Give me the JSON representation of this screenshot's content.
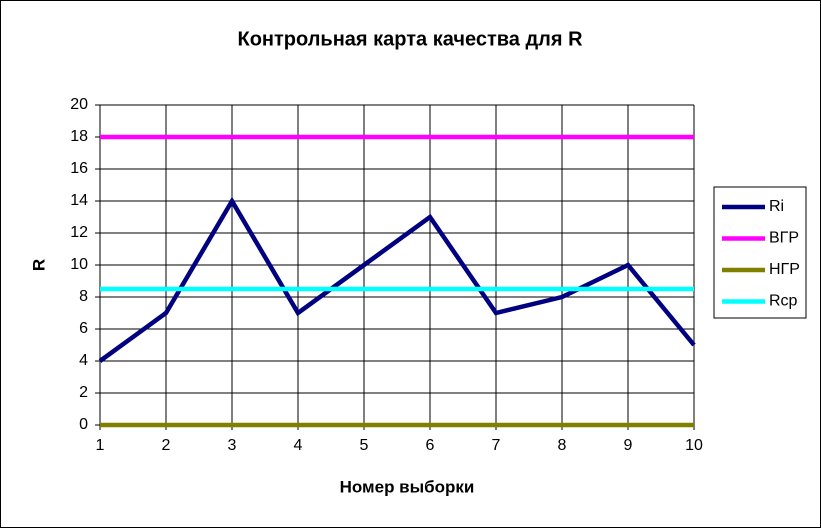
{
  "chart_data": {
    "type": "line",
    "title": "Контрольная карта качества для R",
    "x_label": "Номер выборки",
    "y_label": "R",
    "x": [
      1,
      2,
      3,
      4,
      5,
      6,
      7,
      8,
      9,
      10
    ],
    "series": [
      {
        "name": "Ri",
        "color": "#000080",
        "values": [
          4,
          7,
          14,
          7,
          10,
          13,
          7,
          8,
          10,
          5
        ]
      },
      {
        "name": "ВГР",
        "color": "#ff00ff",
        "values": [
          18,
          18,
          18,
          18,
          18,
          18,
          18,
          18,
          18,
          18
        ]
      },
      {
        "name": "НГР",
        "color": "#808000",
        "values": [
          0,
          0,
          0,
          0,
          0,
          0,
          0,
          0,
          0,
          0
        ]
      },
      {
        "name": "Rcp",
        "color": "#00ffff",
        "values": [
          8.5,
          8.5,
          8.5,
          8.5,
          8.5,
          8.5,
          8.5,
          8.5,
          8.5,
          8.5
        ]
      }
    ],
    "xlim": [
      1,
      10
    ],
    "xticks": [
      1,
      2,
      3,
      4,
      5,
      6,
      7,
      8,
      9,
      10
    ],
    "ylim": [
      0,
      20
    ],
    "yticks": [
      0,
      2,
      4,
      6,
      8,
      10,
      12,
      14,
      16,
      18,
      20
    ],
    "grid": true,
    "legend": "right"
  }
}
